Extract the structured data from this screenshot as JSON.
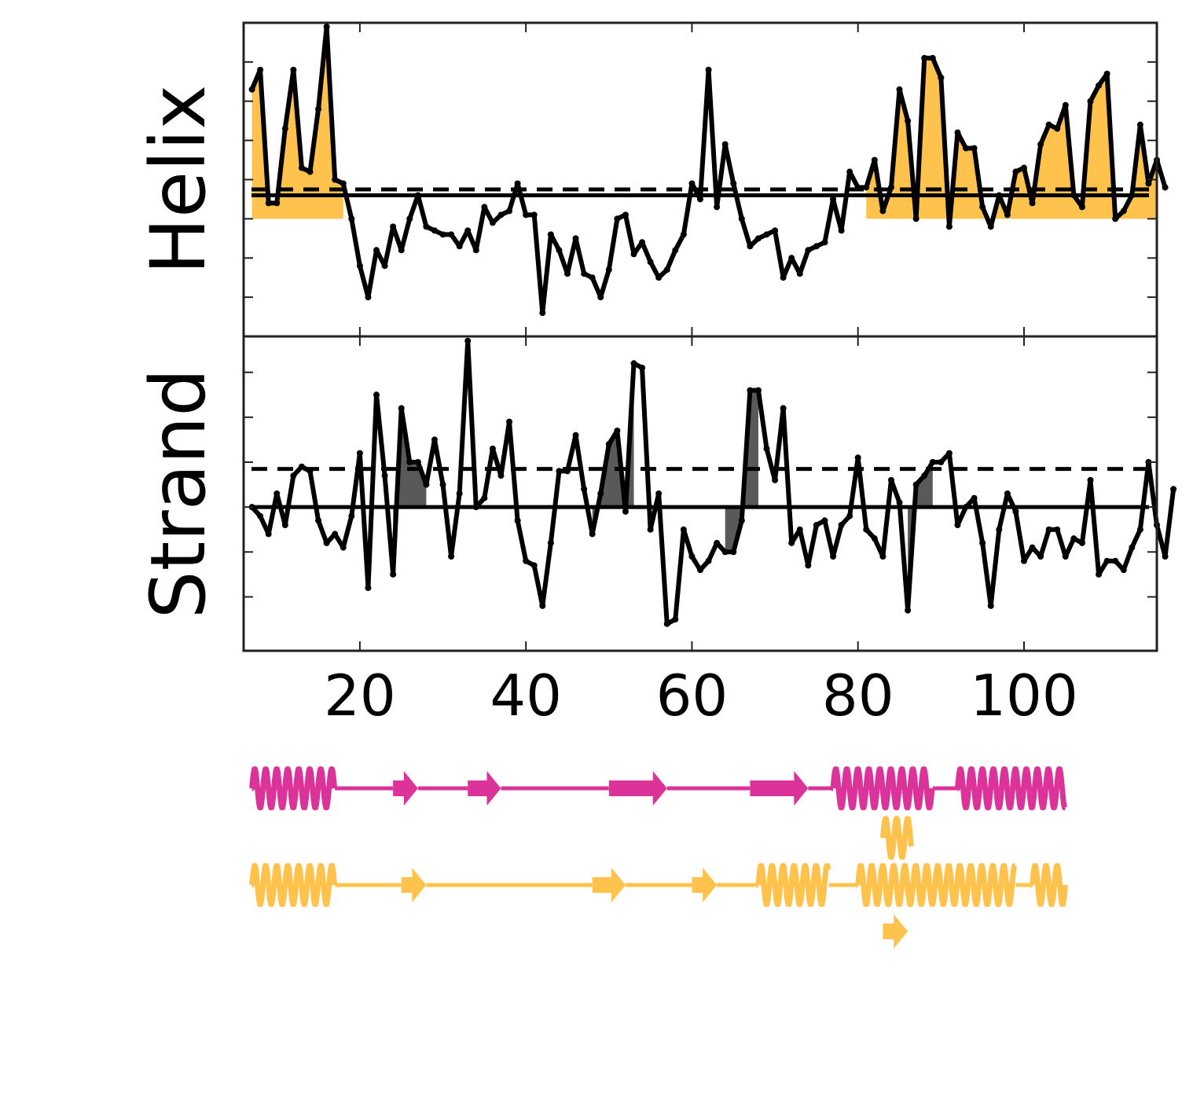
{
  "colors": {
    "helix": "#ffc34d",
    "strand_fill": "#595959",
    "magenta": "#db3399",
    "line": "#000000",
    "frame": "#222222"
  },
  "chart_data": {
    "type": "line",
    "xlim": [
      6,
      116
    ],
    "xticks": [
      20,
      40,
      60,
      80,
      100
    ],
    "x_start": 7,
    "panels": [
      {
        "name": "helix",
        "ylabel": "Helix",
        "ylim": [
          -3,
          5
        ],
        "yticks": [
          -2,
          -1,
          0,
          1,
          2,
          3,
          4
        ],
        "solid_threshold": 0.6,
        "dashed_threshold": 0.75,
        "fill_color": "#ffc34d",
        "fill_base": 0,
        "fill_segments": [
          [
            7,
            18
          ],
          [
            81,
            116
          ]
        ],
        "values": [
          3.3,
          3.8,
          0.4,
          0.4,
          2.3,
          3.8,
          1.3,
          1.2,
          2.8,
          4.9,
          1.0,
          0.9,
          0.0,
          -1.2,
          -2.0,
          -0.8,
          -1.2,
          -0.2,
          -0.8,
          0.0,
          0.6,
          -0.2,
          -0.3,
          -0.4,
          -0.4,
          -0.7,
          -0.3,
          -0.8,
          0.3,
          -0.1,
          0.1,
          0.2,
          0.9,
          0.1,
          0.1,
          -2.4,
          -0.4,
          -0.8,
          -1.4,
          -0.5,
          -1.4,
          -1.5,
          -2.0,
          -1.3,
          0.0,
          0.1,
          -0.9,
          -0.6,
          -1.1,
          -1.5,
          -1.3,
          -0.8,
          -0.4,
          0.9,
          0.5,
          3.8,
          0.3,
          1.9,
          0.9,
          0.0,
          -0.7,
          -0.5,
          -0.4,
          -0.3,
          -1.5,
          -1.0,
          -1.4,
          -0.8,
          -0.7,
          -0.6,
          0.5,
          -0.3,
          1.2,
          0.8,
          0.8,
          1.5,
          0.2,
          0.8,
          3.3,
          2.5,
          0.0,
          4.1,
          4.1,
          3.6,
          -0.2,
          2.2,
          1.8,
          1.8,
          0.3,
          -0.2,
          0.6,
          0.1,
          1.2,
          1.3,
          0.4,
          1.9,
          2.4,
          2.3,
          2.9,
          0.6,
          0.3,
          3.0,
          3.4,
          3.7,
          0.0,
          0.2,
          0.6,
          2.4,
          0.9,
          1.5,
          0.8
        ],
        "secondary": [
          [
            7,
            17
          ],
          [
            84,
            115
          ]
        ]
      },
      {
        "name": "strand",
        "ylabel": "Strand",
        "ylim": [
          -3.2,
          3.8
        ],
        "yticks": [
          -2,
          -1,
          0,
          1,
          2,
          3
        ],
        "solid_threshold": 0.0,
        "dashed_threshold": 0.85,
        "fill_color": "#595959",
        "fill_base": 0,
        "fill_segments": [
          [
            24,
            28
          ],
          [
            48,
            53
          ],
          [
            64,
            68
          ],
          [
            86,
            89
          ]
        ],
        "values": [
          0.0,
          -0.2,
          -0.6,
          0.3,
          -0.4,
          0.7,
          0.9,
          0.8,
          -0.3,
          -0.8,
          -0.6,
          -0.9,
          -0.2,
          1.2,
          -1.8,
          2.5,
          0.7,
          -1.5,
          2.2,
          1.0,
          1.0,
          0.5,
          1.5,
          0.5,
          -1.1,
          0.3,
          3.7,
          0.0,
          0.2,
          1.3,
          0.7,
          1.9,
          -0.3,
          -1.2,
          -1.3,
          -2.2,
          -0.8,
          0.8,
          0.8,
          1.6,
          0.4,
          -0.6,
          0.3,
          1.4,
          1.7,
          -0.1,
          3.2,
          3.1,
          -0.5,
          0.3,
          -2.6,
          -2.5,
          -0.5,
          -1.1,
          -1.4,
          -1.2,
          -0.8,
          -1.0,
          -1.0,
          -0.3,
          2.6,
          2.6,
          1.3,
          0.6,
          2.2,
          -0.8,
          -0.5,
          -1.3,
          -0.4,
          -0.3,
          -1.1,
          -0.4,
          -0.2,
          1.1,
          -0.5,
          -0.7,
          -1.1,
          0.6,
          0.1,
          -2.3,
          0.5,
          0.7,
          1.0,
          1.0,
          1.2,
          -0.4,
          0.0,
          0.2,
          -0.8,
          -2.2,
          -0.5,
          0.3,
          -0.1,
          -1.2,
          -0.9,
          -1.1,
          -0.5,
          -0.5,
          -1.1,
          -0.7,
          -0.8,
          0.6,
          -1.5,
          -1.2,
          -1.2,
          -1.4,
          -0.9,
          -0.5,
          1.0,
          -0.4,
          -1.1,
          0.4
        ]
      }
    ],
    "tracks": [
      {
        "name": "pink",
        "color": "#db3399",
        "elements": [
          {
            "type": "helix",
            "start": 7,
            "end": 17
          },
          {
            "type": "coil",
            "start": 17,
            "end": 24
          },
          {
            "type": "strand",
            "start": 24,
            "end": 27
          },
          {
            "type": "coil",
            "start": 27,
            "end": 33
          },
          {
            "type": "strand",
            "start": 33,
            "end": 37
          },
          {
            "type": "coil",
            "start": 37,
            "end": 50
          },
          {
            "type": "strand",
            "start": 50,
            "end": 57
          },
          {
            "type": "coil",
            "start": 57,
            "end": 67
          },
          {
            "type": "strand",
            "start": 67,
            "end": 74
          },
          {
            "type": "coil",
            "start": 74,
            "end": 77
          },
          {
            "type": "helix",
            "start": 77,
            "end": 89
          },
          {
            "type": "coil",
            "start": 89,
            "end": 92
          },
          {
            "type": "helix",
            "start": 92,
            "end": 105
          }
        ]
      },
      {
        "name": "yellow-alt",
        "color": "#ffc34d",
        "elements": [
          {
            "type": "helix",
            "start": 83,
            "end": 86.5
          }
        ]
      },
      {
        "name": "yellow",
        "color": "#ffc34d",
        "elements": [
          {
            "type": "helix",
            "start": 7,
            "end": 17
          },
          {
            "type": "coil",
            "start": 17,
            "end": 25
          },
          {
            "type": "strand",
            "start": 25,
            "end": 28
          },
          {
            "type": "coil",
            "start": 28,
            "end": 48
          },
          {
            "type": "strand",
            "start": 48,
            "end": 52
          },
          {
            "type": "coil",
            "start": 52,
            "end": 60
          },
          {
            "type": "strand",
            "start": 60,
            "end": 63
          },
          {
            "type": "coil",
            "start": 63,
            "end": 68
          },
          {
            "type": "helix",
            "start": 68,
            "end": 76.5
          },
          {
            "type": "coil",
            "start": 76.5,
            "end": 80
          },
          {
            "type": "helix",
            "start": 80,
            "end": 99
          },
          {
            "type": "coil",
            "start": 99,
            "end": 101
          },
          {
            "type": "helix",
            "start": 101,
            "end": 105
          }
        ]
      },
      {
        "name": "yellow-alt2",
        "color": "#ffc34d",
        "elements": [
          {
            "type": "strand",
            "start": 83,
            "end": 86
          }
        ]
      }
    ]
  }
}
